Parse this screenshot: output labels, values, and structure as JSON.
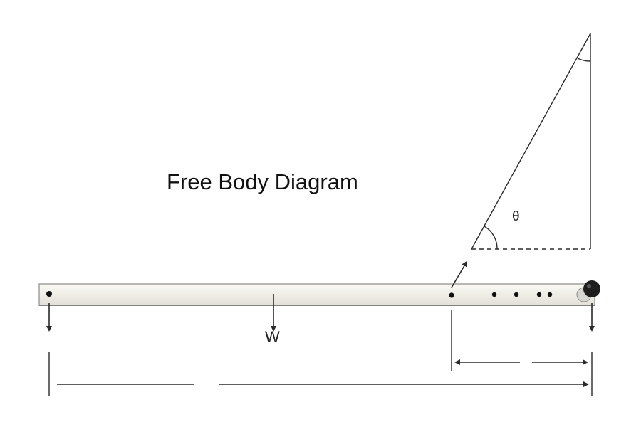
{
  "diagram": {
    "title": "Free Body Diagram",
    "weight_label": "W",
    "angle_label": "θ"
  },
  "colors": {
    "line": "#2a2a2a",
    "bar_fill": "#f1efe9",
    "bar_edge": "#9a9a9a",
    "hole": "#111111",
    "knob": "#1e1e1e"
  }
}
